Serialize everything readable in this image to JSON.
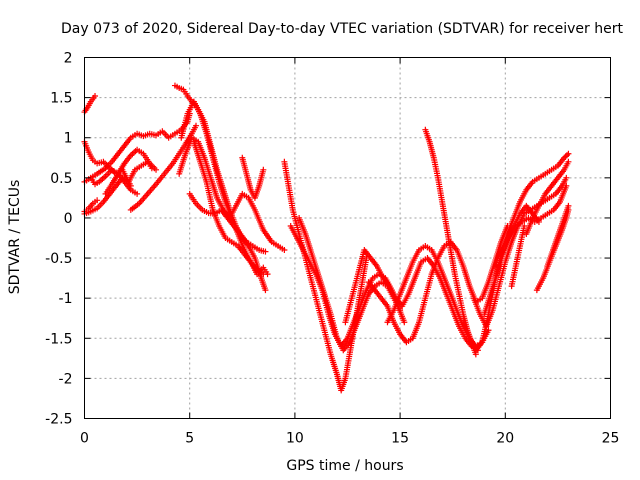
{
  "chart_data": {
    "type": "scatter",
    "title": "Day 073 of 2020, Sidereal Day-to-day VTEC variation (SDTVAR) for receiver hert",
    "xlabel": "GPS time / hours",
    "ylabel": "SDTVAR / TECUs",
    "xlim": [
      0,
      25
    ],
    "ylim": [
      -2.5,
      2
    ],
    "xticks": [
      "0",
      "5",
      "10",
      "15",
      "20",
      "25"
    ],
    "yticks": [
      "2",
      "1.5",
      "1",
      "0.5",
      "0",
      "-0.5",
      "-1",
      "-1.5",
      "-2",
      "-2.5"
    ],
    "grid": true,
    "marker": "+",
    "marker_color": "#ff0000",
    "traces": [
      {
        "x": [
          0.0,
          0.15,
          0.3,
          0.5
        ],
        "y": [
          1.32,
          1.38,
          1.45,
          1.52
        ]
      },
      {
        "x": [
          0.0,
          0.3,
          0.6,
          1.0,
          1.3,
          1.6,
          1.9,
          2.2,
          2.5,
          2.8,
          3.1,
          3.4,
          3.7,
          4.0,
          4.3,
          4.6,
          4.9,
          5.0
        ],
        "y": [
          0.45,
          0.5,
          0.55,
          0.62,
          0.7,
          0.8,
          0.9,
          1.0,
          1.05,
          1.02,
          1.05,
          1.03,
          1.08,
          1.0,
          1.05,
          1.1,
          1.2,
          1.3
        ]
      },
      {
        "x": [
          0.0,
          0.3,
          0.6,
          0.9,
          1.2,
          1.5,
          1.8,
          2.1,
          2.4,
          2.7,
          3.0,
          3.2
        ],
        "y": [
          0.05,
          0.08,
          0.12,
          0.2,
          0.3,
          0.4,
          0.5,
          0.45,
          0.6,
          0.65,
          0.7,
          0.62
        ]
      },
      {
        "x": [
          0.0,
          0.2,
          0.4,
          0.6,
          0.9,
          1.2,
          1.5,
          1.8,
          2.0,
          2.2
        ],
        "y": [
          0.95,
          0.82,
          0.72,
          0.68,
          0.7,
          0.62,
          0.55,
          0.6,
          0.5,
          0.4
        ]
      },
      {
        "x": [
          0.3,
          0.5,
          0.7,
          1.0,
          1.3,
          1.6,
          1.9,
          2.2,
          2.5
        ],
        "y": [
          0.5,
          0.42,
          0.45,
          0.52,
          0.6,
          0.55,
          0.45,
          0.35,
          0.3
        ]
      },
      {
        "x": [
          1.0,
          1.3,
          1.6,
          1.9,
          2.2,
          2.5,
          2.8,
          3.1,
          3.4
        ],
        "y": [
          0.3,
          0.42,
          0.55,
          0.68,
          0.78,
          0.85,
          0.8,
          0.68,
          0.6
        ]
      },
      {
        "x": [
          2.2,
          2.6,
          3.0,
          3.4,
          3.8,
          4.2,
          4.5,
          4.8,
          5.1,
          5.3
        ],
        "y": [
          0.1,
          0.18,
          0.3,
          0.42,
          0.55,
          0.68,
          0.8,
          0.92,
          1.05,
          1.15
        ]
      },
      {
        "x": [
          0.0,
          0.2,
          0.4,
          0.6
        ],
        "y": [
          0.08,
          0.12,
          0.18,
          0.22
        ]
      },
      {
        "x": [
          4.3,
          4.5,
          4.7,
          4.9,
          5.1,
          5.3,
          5.5,
          5.7,
          5.9,
          6.1,
          6.3,
          6.6,
          6.9,
          7.2,
          7.5,
          7.8,
          8.1,
          8.4,
          8.6
        ],
        "y": [
          1.65,
          1.62,
          1.6,
          1.52,
          1.45,
          1.4,
          1.3,
          1.2,
          1.0,
          0.8,
          0.6,
          0.35,
          0.1,
          -0.1,
          -0.25,
          -0.35,
          -0.5,
          -0.75,
          -0.9
        ]
      },
      {
        "x": [
          4.6,
          4.9,
          5.2,
          5.5,
          5.8,
          6.1,
          6.4,
          6.7,
          7.0,
          7.3,
          7.6,
          7.9,
          8.2,
          8.5,
          8.7
        ],
        "y": [
          1.0,
          1.3,
          1.45,
          1.3,
          1.05,
          0.75,
          0.45,
          0.2,
          0.0,
          -0.2,
          -0.4,
          -0.55,
          -0.7,
          -0.62,
          -0.7
        ]
      },
      {
        "x": [
          4.5,
          4.8,
          5.1,
          5.4,
          5.7,
          6.0,
          6.3,
          6.6,
          6.9,
          7.2,
          7.5,
          7.8,
          8.1,
          8.5,
          8.9,
          9.2,
          9.5
        ],
        "y": [
          0.55,
          0.8,
          1.0,
          0.95,
          0.75,
          0.5,
          0.25,
          0.1,
          0.0,
          0.15,
          0.3,
          0.25,
          0.1,
          -0.15,
          -0.3,
          -0.35,
          -0.4
        ]
      },
      {
        "x": [
          5.2,
          5.5,
          5.8,
          6.1,
          6.4,
          6.7,
          7.0,
          7.3,
          7.6,
          7.9,
          8.2,
          8.5
        ],
        "y": [
          0.95,
          0.7,
          0.45,
          0.1,
          -0.1,
          -0.25,
          -0.3,
          -0.35,
          -0.45,
          -0.55,
          -0.65,
          -0.7
        ]
      },
      {
        "x": [
          5.0,
          5.3,
          5.6,
          5.9,
          6.2,
          6.5,
          6.8,
          7.1,
          7.4,
          7.7,
          8.0,
          8.3,
          8.6
        ],
        "y": [
          0.3,
          0.18,
          0.1,
          0.06,
          0.05,
          0.1,
          0.0,
          -0.1,
          -0.2,
          -0.3,
          -0.35,
          -0.4,
          -0.42
        ]
      },
      {
        "x": [
          7.5,
          7.7,
          7.9,
          8.1,
          8.3,
          8.5
        ],
        "y": [
          0.75,
          0.55,
          0.35,
          0.25,
          0.4,
          0.6
        ]
      },
      {
        "x": [
          9.5,
          9.7,
          9.9,
          10.2,
          10.5,
          10.8,
          11.1,
          11.4,
          11.7,
          12.0,
          12.2,
          12.4,
          12.6,
          12.8,
          13.0,
          13.2,
          13.4
        ],
        "y": [
          0.7,
          0.4,
          0.1,
          -0.2,
          -0.5,
          -0.8,
          -1.1,
          -1.4,
          -1.7,
          -1.95,
          -2.15,
          -2.0,
          -1.7,
          -1.4,
          -1.1,
          -0.8,
          -0.5
        ]
      },
      {
        "x": [
          9.8,
          10.1,
          10.4,
          10.7,
          11.0,
          11.3,
          11.6,
          11.9,
          12.2,
          12.5,
          12.8,
          13.1,
          13.4,
          13.7,
          14.0,
          14.3,
          14.6,
          14.9,
          15.2
        ],
        "y": [
          -0.1,
          -0.25,
          -0.4,
          -0.55,
          -0.7,
          -0.9,
          -1.2,
          -1.45,
          -1.6,
          -1.5,
          -1.3,
          -1.1,
          -0.9,
          -0.75,
          -0.7,
          -0.75,
          -0.9,
          -1.1,
          -1.3
        ]
      },
      {
        "x": [
          10.2,
          10.5,
          10.8,
          11.1,
          11.4,
          11.7,
          12.0,
          12.3,
          12.6,
          12.9,
          13.2,
          13.5,
          13.8,
          14.1,
          14.4,
          14.7,
          15.0
        ],
        "y": [
          0.0,
          -0.2,
          -0.45,
          -0.7,
          -0.95,
          -1.2,
          -1.5,
          -1.65,
          -1.55,
          -1.35,
          -1.15,
          -0.95,
          -0.85,
          -0.8,
          -0.85,
          -1.0,
          -1.15
        ]
      },
      {
        "x": [
          12.4,
          12.7,
          13.0,
          13.3,
          13.6,
          13.9,
          14.2,
          14.5,
          14.8,
          15.1,
          15.4,
          15.7,
          16.0,
          16.3,
          16.6,
          16.9,
          17.2,
          17.5,
          17.8,
          18.1,
          18.4,
          18.7
        ],
        "y": [
          -1.3,
          -1.0,
          -0.7,
          -0.4,
          -0.5,
          -0.6,
          -0.75,
          -0.85,
          -1.0,
          -1.1,
          -0.95,
          -0.75,
          -0.55,
          -0.5,
          -0.6,
          -0.75,
          -0.95,
          -1.15,
          -1.35,
          -1.5,
          -1.6,
          -1.65
        ]
      },
      {
        "x": [
          13.5,
          13.8,
          14.1,
          14.4,
          14.7,
          15.0,
          15.3,
          15.6,
          15.9,
          16.2,
          16.5,
          16.8,
          17.1,
          17.4,
          17.7,
          18.0,
          18.3,
          18.6,
          18.9,
          19.2,
          19.5,
          19.8,
          20.1
        ],
        "y": [
          -0.8,
          -0.9,
          -1.0,
          -1.1,
          -1.3,
          -1.45,
          -1.55,
          -1.5,
          -1.3,
          -1.0,
          -0.7,
          -0.5,
          -0.35,
          -0.3,
          -0.4,
          -0.6,
          -0.85,
          -1.05,
          -1.0,
          -0.8,
          -0.55,
          -0.3,
          -0.1
        ]
      },
      {
        "x": [
          14.4,
          14.7,
          15.0,
          15.3,
          15.6,
          15.9,
          16.2,
          16.5,
          16.8,
          17.1,
          17.4,
          17.7,
          18.0,
          18.3,
          18.6,
          18.9,
          19.2
        ],
        "y": [
          -1.3,
          -1.15,
          -0.95,
          -0.75,
          -0.55,
          -0.4,
          -0.35,
          -0.4,
          -0.55,
          -0.75,
          -0.95,
          -1.15,
          -1.35,
          -1.5,
          -1.6,
          -1.55,
          -1.4
        ]
      },
      {
        "x": [
          16.2,
          16.4,
          16.6,
          16.8,
          17.0,
          17.2,
          17.4,
          17.6,
          17.8,
          18.0,
          18.2,
          18.4,
          18.6
        ],
        "y": [
          1.1,
          0.95,
          0.75,
          0.5,
          0.2,
          -0.1,
          -0.4,
          -0.7,
          -0.95,
          -1.2,
          -1.4,
          -1.55,
          -1.7
        ]
      },
      {
        "x": [
          18.0,
          18.3,
          18.6,
          18.9,
          19.2,
          19.5,
          19.8,
          20.1,
          20.4,
          20.7,
          21.0,
          21.3,
          21.6,
          21.9,
          22.2,
          22.5,
          22.8,
          23.0
        ],
        "y": [
          -1.3,
          -1.5,
          -1.65,
          -1.55,
          -1.2,
          -0.8,
          -0.45,
          -0.2,
          0.0,
          0.2,
          0.35,
          0.45,
          0.5,
          0.55,
          0.6,
          0.65,
          0.75,
          0.8
        ]
      },
      {
        "x": [
          18.5,
          18.8,
          19.1,
          19.4,
          19.7,
          20.0,
          20.3,
          20.6,
          20.9,
          21.2,
          21.5,
          21.8,
          22.1,
          22.4,
          22.7,
          22.9
        ],
        "y": [
          -1.0,
          -1.2,
          -1.35,
          -1.15,
          -0.85,
          -0.55,
          -0.3,
          -0.1,
          0.05,
          0.1,
          0.15,
          0.2,
          0.25,
          0.3,
          0.4,
          0.5
        ]
      },
      {
        "x": [
          19.0,
          19.3,
          19.6,
          19.9,
          20.2,
          20.5,
          20.8,
          21.1,
          21.4,
          21.7,
          22.0,
          22.3,
          22.6,
          22.9
        ],
        "y": [
          -1.2,
          -0.95,
          -0.7,
          -0.45,
          -0.25,
          -0.1,
          -0.05,
          0.0,
          -0.05,
          0.0,
          0.05,
          0.1,
          0.2,
          0.4
        ]
      },
      {
        "x": [
          19.5,
          19.8,
          20.1,
          20.4,
          20.7,
          21.0,
          21.3,
          21.6
        ],
        "y": [
          -0.6,
          -0.4,
          -0.25,
          -0.1,
          0.05,
          0.15,
          0.05,
          -0.05
        ]
      },
      {
        "x": [
          21.0,
          21.3,
          21.6,
          21.9,
          22.2,
          22.5,
          22.8,
          23.0
        ],
        "y": [
          -0.2,
          0.0,
          0.15,
          0.3,
          0.4,
          0.5,
          0.6,
          0.7
        ]
      },
      {
        "x": [
          21.5,
          21.8,
          22.1,
          22.4,
          22.7,
          22.9,
          23.0
        ],
        "y": [
          -0.9,
          -0.75,
          -0.55,
          -0.35,
          -0.15,
          0.0,
          0.1
        ]
      },
      {
        "x": [
          22.0,
          22.2,
          22.4,
          22.6,
          22.8,
          23.0
        ],
        "y": [
          -0.6,
          -0.45,
          -0.3,
          -0.15,
          0.0,
          0.15
        ]
      },
      {
        "x": [
          20.3,
          20.5,
          20.7,
          20.9
        ],
        "y": [
          -0.85,
          -0.6,
          -0.35,
          -0.1
        ]
      }
    ]
  }
}
